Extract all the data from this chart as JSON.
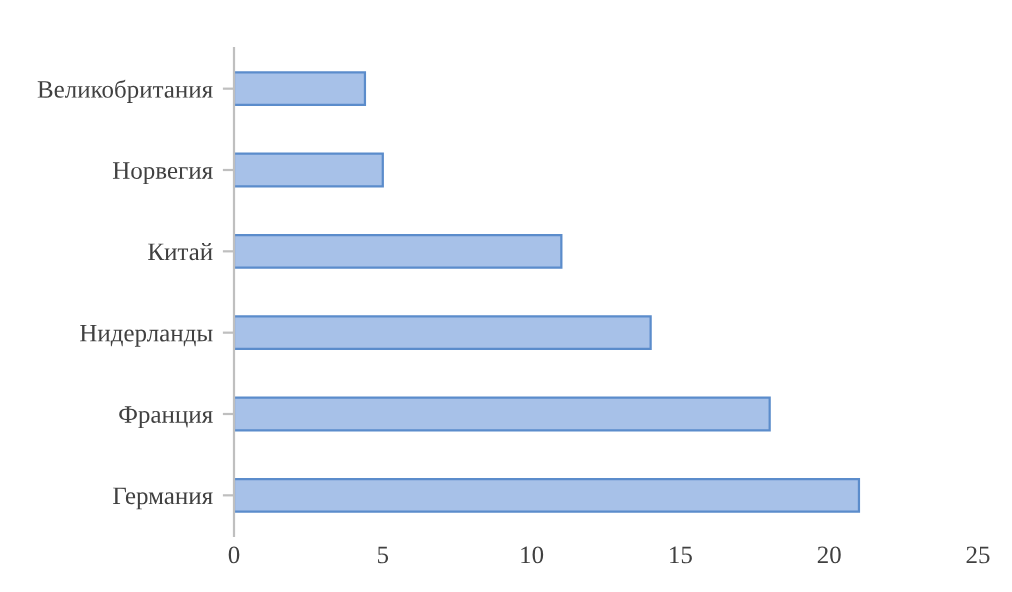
{
  "chart_data": {
    "type": "bar",
    "orientation": "horizontal",
    "categories": [
      "Великобритания",
      "Норвегия",
      "Китай",
      "Нидерланды",
      "Франция",
      "Германия"
    ],
    "values": [
      4.4,
      5,
      11,
      14,
      18,
      21
    ],
    "color": "#a7c1e8",
    "xlim": [
      0,
      25
    ],
    "xticks": [
      0,
      5,
      10,
      15,
      20,
      25
    ],
    "grid": false
  }
}
